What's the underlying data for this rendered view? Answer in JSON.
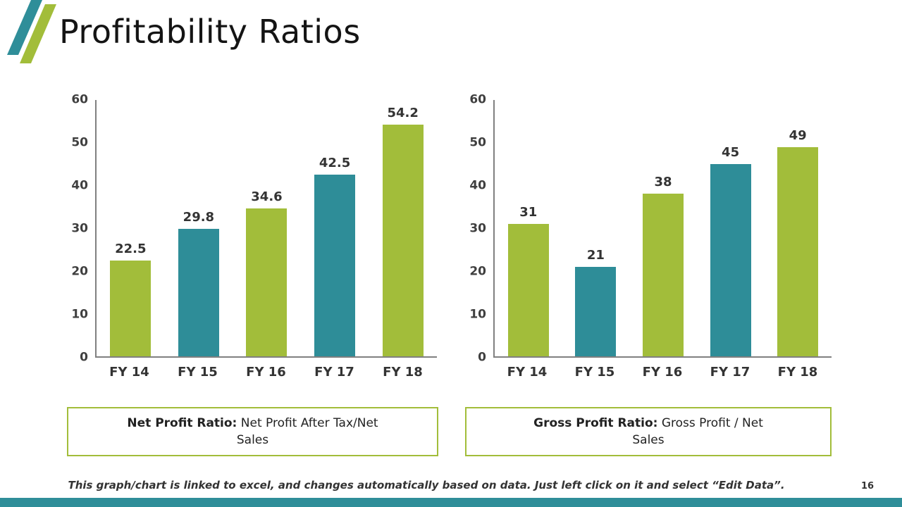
{
  "page": {
    "title": "Profitability Ratios",
    "page_number": "16",
    "footer_note": "This graph/chart is linked to excel, and changes automatically based on data. Just left click on it and select “Edit Data”."
  },
  "colors": {
    "green": "#a2bd3a",
    "teal": "#2e8d98",
    "axis": "#808080",
    "accent_bar": "#2f8e99"
  },
  "chart_data": [
    {
      "type": "bar",
      "categories": [
        "FY 14",
        "FY 15",
        "FY 16",
        "FY 17",
        "FY 18"
      ],
      "values": [
        22.5,
        29.8,
        34.6,
        42.5,
        54.2
      ],
      "bar_colors": [
        "green",
        "teal",
        "green",
        "teal",
        "green"
      ],
      "title": "Net Profit Ratio",
      "xlabel": "",
      "ylabel": "",
      "ylim": [
        0,
        60
      ],
      "yticks": [
        0,
        10,
        20,
        30,
        40,
        50,
        60
      ],
      "grid": false,
      "legend": "none",
      "caption_bold": "Net Profit Ratio:",
      "caption_rest": " Net Profit After Tax/Net Sales"
    },
    {
      "type": "bar",
      "categories": [
        "FY 14",
        "FY 15",
        "FY 16",
        "FY 17",
        "FY 18"
      ],
      "values": [
        31,
        21,
        38,
        45,
        49
      ],
      "bar_colors": [
        "green",
        "teal",
        "green",
        "teal",
        "green"
      ],
      "title": "Gross Profit Ratio",
      "xlabel": "",
      "ylabel": "",
      "ylim": [
        0,
        60
      ],
      "yticks": [
        0,
        10,
        20,
        30,
        40,
        50,
        60
      ],
      "grid": false,
      "legend": "none",
      "caption_bold": "Gross Profit Ratio:",
      "caption_rest": " Gross Profit / Net Sales"
    }
  ]
}
